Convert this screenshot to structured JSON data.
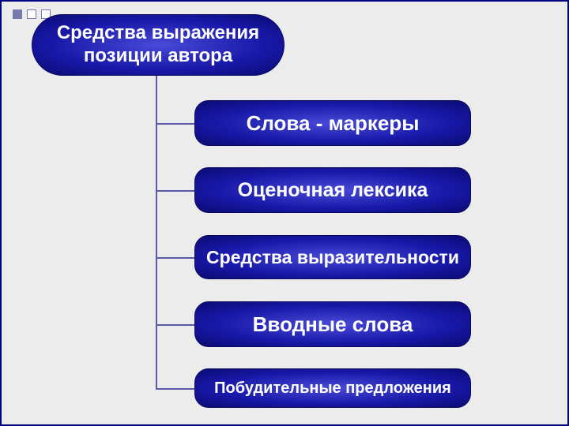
{
  "diagram": {
    "type": "tree",
    "background_color": "#ececec",
    "border_color": "#000080",
    "connector_color": "#5a5aa8",
    "node_gradient": {
      "center": "#4a4ad8",
      "mid": "#1818a8",
      "edge": "#0a0a70"
    },
    "text_color": "#ffffff",
    "root": {
      "label": "Средства выражения позиции автора",
      "fontsize": 24,
      "font_weight": "bold"
    },
    "children": [
      {
        "label": "Слова - маркеры",
        "fontsize": 26
      },
      {
        "label": "Оценочная лексика",
        "fontsize": 25
      },
      {
        "label": "Средства выразительности",
        "fontsize": 23
      },
      {
        "label": "Вводные слова",
        "fontsize": 26
      },
      {
        "label": "Побудительные предложения",
        "fontsize": 20
      }
    ]
  }
}
